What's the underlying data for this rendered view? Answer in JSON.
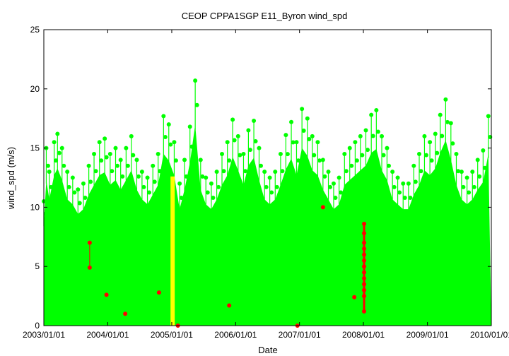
{
  "chart_data": {
    "type": "scatter",
    "title": "CEOP CPPA1SGP E11_Byron  wind_spd",
    "xlabel": "Date",
    "ylabel": "wind_spd (m/s)",
    "x_range": [
      "2003-01-01",
      "2010-01-01"
    ],
    "ylim": [
      0,
      25
    ],
    "yticks": [
      0,
      5,
      10,
      15,
      20,
      25
    ],
    "xticks": [
      "2003/01/01",
      "2004/01/01",
      "2005/01/01",
      "2006/01/01",
      "2007/01/01",
      "2008/01/01",
      "2009/01/01",
      "2010/01/01"
    ],
    "grid": false,
    "colors": {
      "good": "#00ff00",
      "suspect": "#ffff00",
      "flagged": "#ff0000"
    },
    "envelope": {
      "dates": [
        "2003-01-01",
        "2003-01-15",
        "2003-02-01",
        "2003-03-01",
        "2003-03-20",
        "2003-04-15",
        "2003-05-15",
        "2003-06-15",
        "2003-07-15",
        "2003-08-15",
        "2003-09-15",
        "2003-10-15",
        "2003-11-15",
        "2003-12-15",
        "2004-01-15",
        "2004-02-15",
        "2004-03-15",
        "2004-04-15",
        "2004-05-15",
        "2004-06-15",
        "2004-07-15",
        "2004-08-15",
        "2004-09-15",
        "2004-10-15",
        "2004-11-15",
        "2004-12-15",
        "2005-01-15",
        "2005-02-15",
        "2005-03-15",
        "2005-04-15",
        "2005-05-15",
        "2005-06-15",
        "2005-07-15",
        "2005-08-15",
        "2005-09-15",
        "2005-10-15",
        "2005-11-15",
        "2005-12-15",
        "2006-01-15",
        "2006-02-15",
        "2006-03-15",
        "2006-04-15",
        "2006-05-15",
        "2006-06-15",
        "2006-07-15",
        "2006-08-15",
        "2006-09-15",
        "2006-10-15",
        "2006-11-15",
        "2006-12-15",
        "2007-01-15",
        "2007-02-15",
        "2007-03-15",
        "2007-04-15",
        "2007-05-15",
        "2007-06-15",
        "2007-07-15",
        "2007-08-15",
        "2007-09-15",
        "2007-10-15",
        "2007-11-15",
        "2007-12-15",
        "2008-01-15",
        "2008-02-15",
        "2008-03-15",
        "2008-04-15",
        "2008-05-15",
        "2008-06-15",
        "2008-07-15",
        "2008-08-15",
        "2008-09-15",
        "2008-10-15",
        "2008-11-15",
        "2008-12-15",
        "2009-01-15",
        "2009-02-15",
        "2009-03-15",
        "2009-04-15",
        "2009-05-15",
        "2009-06-15",
        "2009-07-15",
        "2009-08-15",
        "2009-09-15",
        "2009-10-15",
        "2009-11-15",
        "2009-12-15"
      ],
      "max_wind_spd": [
        10.5,
        15.0,
        13.0,
        15.5,
        16.2,
        15.0,
        13.0,
        12.5,
        11.5,
        12.0,
        13.5,
        14.5,
        15.5,
        15.8,
        14.5,
        15.0,
        14.0,
        15.0,
        16.0,
        14.0,
        13.0,
        12.5,
        13.5,
        14.5,
        17.7,
        17.0,
        15.5,
        12.0,
        14.0,
        16.8,
        20.7,
        14.0,
        12.5,
        12.0,
        13.0,
        14.5,
        15.5,
        17.4,
        16.0,
        14.5,
        16.5,
        17.3,
        15.0,
        13.0,
        12.5,
        13.0,
        14.5,
        16.1,
        17.2,
        15.5,
        18.3,
        17.5,
        16.0,
        15.5,
        14.0,
        13.0,
        12.0,
        12.5,
        14.5,
        15.0,
        15.5,
        16.0,
        16.5,
        17.8,
        18.2,
        16.0,
        15.0,
        13.0,
        12.5,
        12.0,
        12.0,
        13.5,
        14.5,
        16.0,
        15.5,
        16.2,
        17.8,
        19.1,
        17.1,
        14.5,
        13.0,
        12.5,
        13.0,
        14.0,
        14.8,
        17.7
      ]
    },
    "series": [
      {
        "name": "",
        "color": "#ffff00",
        "x_range": [
          "2004-12-25",
          "2005-01-18"
        ],
        "max": 12.6
      },
      {
        "name": "",
        "color": "#ff0000",
        "points": [
          {
            "x": "2003-09-20",
            "y": 7.0
          },
          {
            "x": "2003-09-20",
            "y": 4.9
          },
          {
            "x": "2003-12-25",
            "y": 2.6
          },
          {
            "x": "2004-04-10",
            "y": 1.0
          },
          {
            "x": "2004-10-20",
            "y": 2.8
          },
          {
            "x": "2005-02-05",
            "y": 0.0
          },
          {
            "x": "2005-11-25",
            "y": 1.7
          },
          {
            "x": "2006-12-20",
            "y": 0.0
          },
          {
            "x": "2007-05-15",
            "y": 10.0
          },
          {
            "x": "2007-11-10",
            "y": 2.4
          },
          {
            "x": "2008-01-05",
            "y": 8.6
          },
          {
            "x": "2008-01-05",
            "y": 7.8
          },
          {
            "x": "2008-01-05",
            "y": 7.0
          },
          {
            "x": "2008-01-05",
            "y": 6.5
          },
          {
            "x": "2008-01-05",
            "y": 6.0
          },
          {
            "x": "2008-01-05",
            "y": 5.5
          },
          {
            "x": "2008-01-05",
            "y": 5.0
          },
          {
            "x": "2008-01-05",
            "y": 4.5
          },
          {
            "x": "2008-01-05",
            "y": 4.0
          },
          {
            "x": "2008-01-05",
            "y": 3.5
          },
          {
            "x": "2008-01-05",
            "y": 3.0
          },
          {
            "x": "2008-01-05",
            "y": 2.5
          },
          {
            "x": "2008-01-05",
            "y": 1.2
          }
        ]
      }
    ]
  }
}
